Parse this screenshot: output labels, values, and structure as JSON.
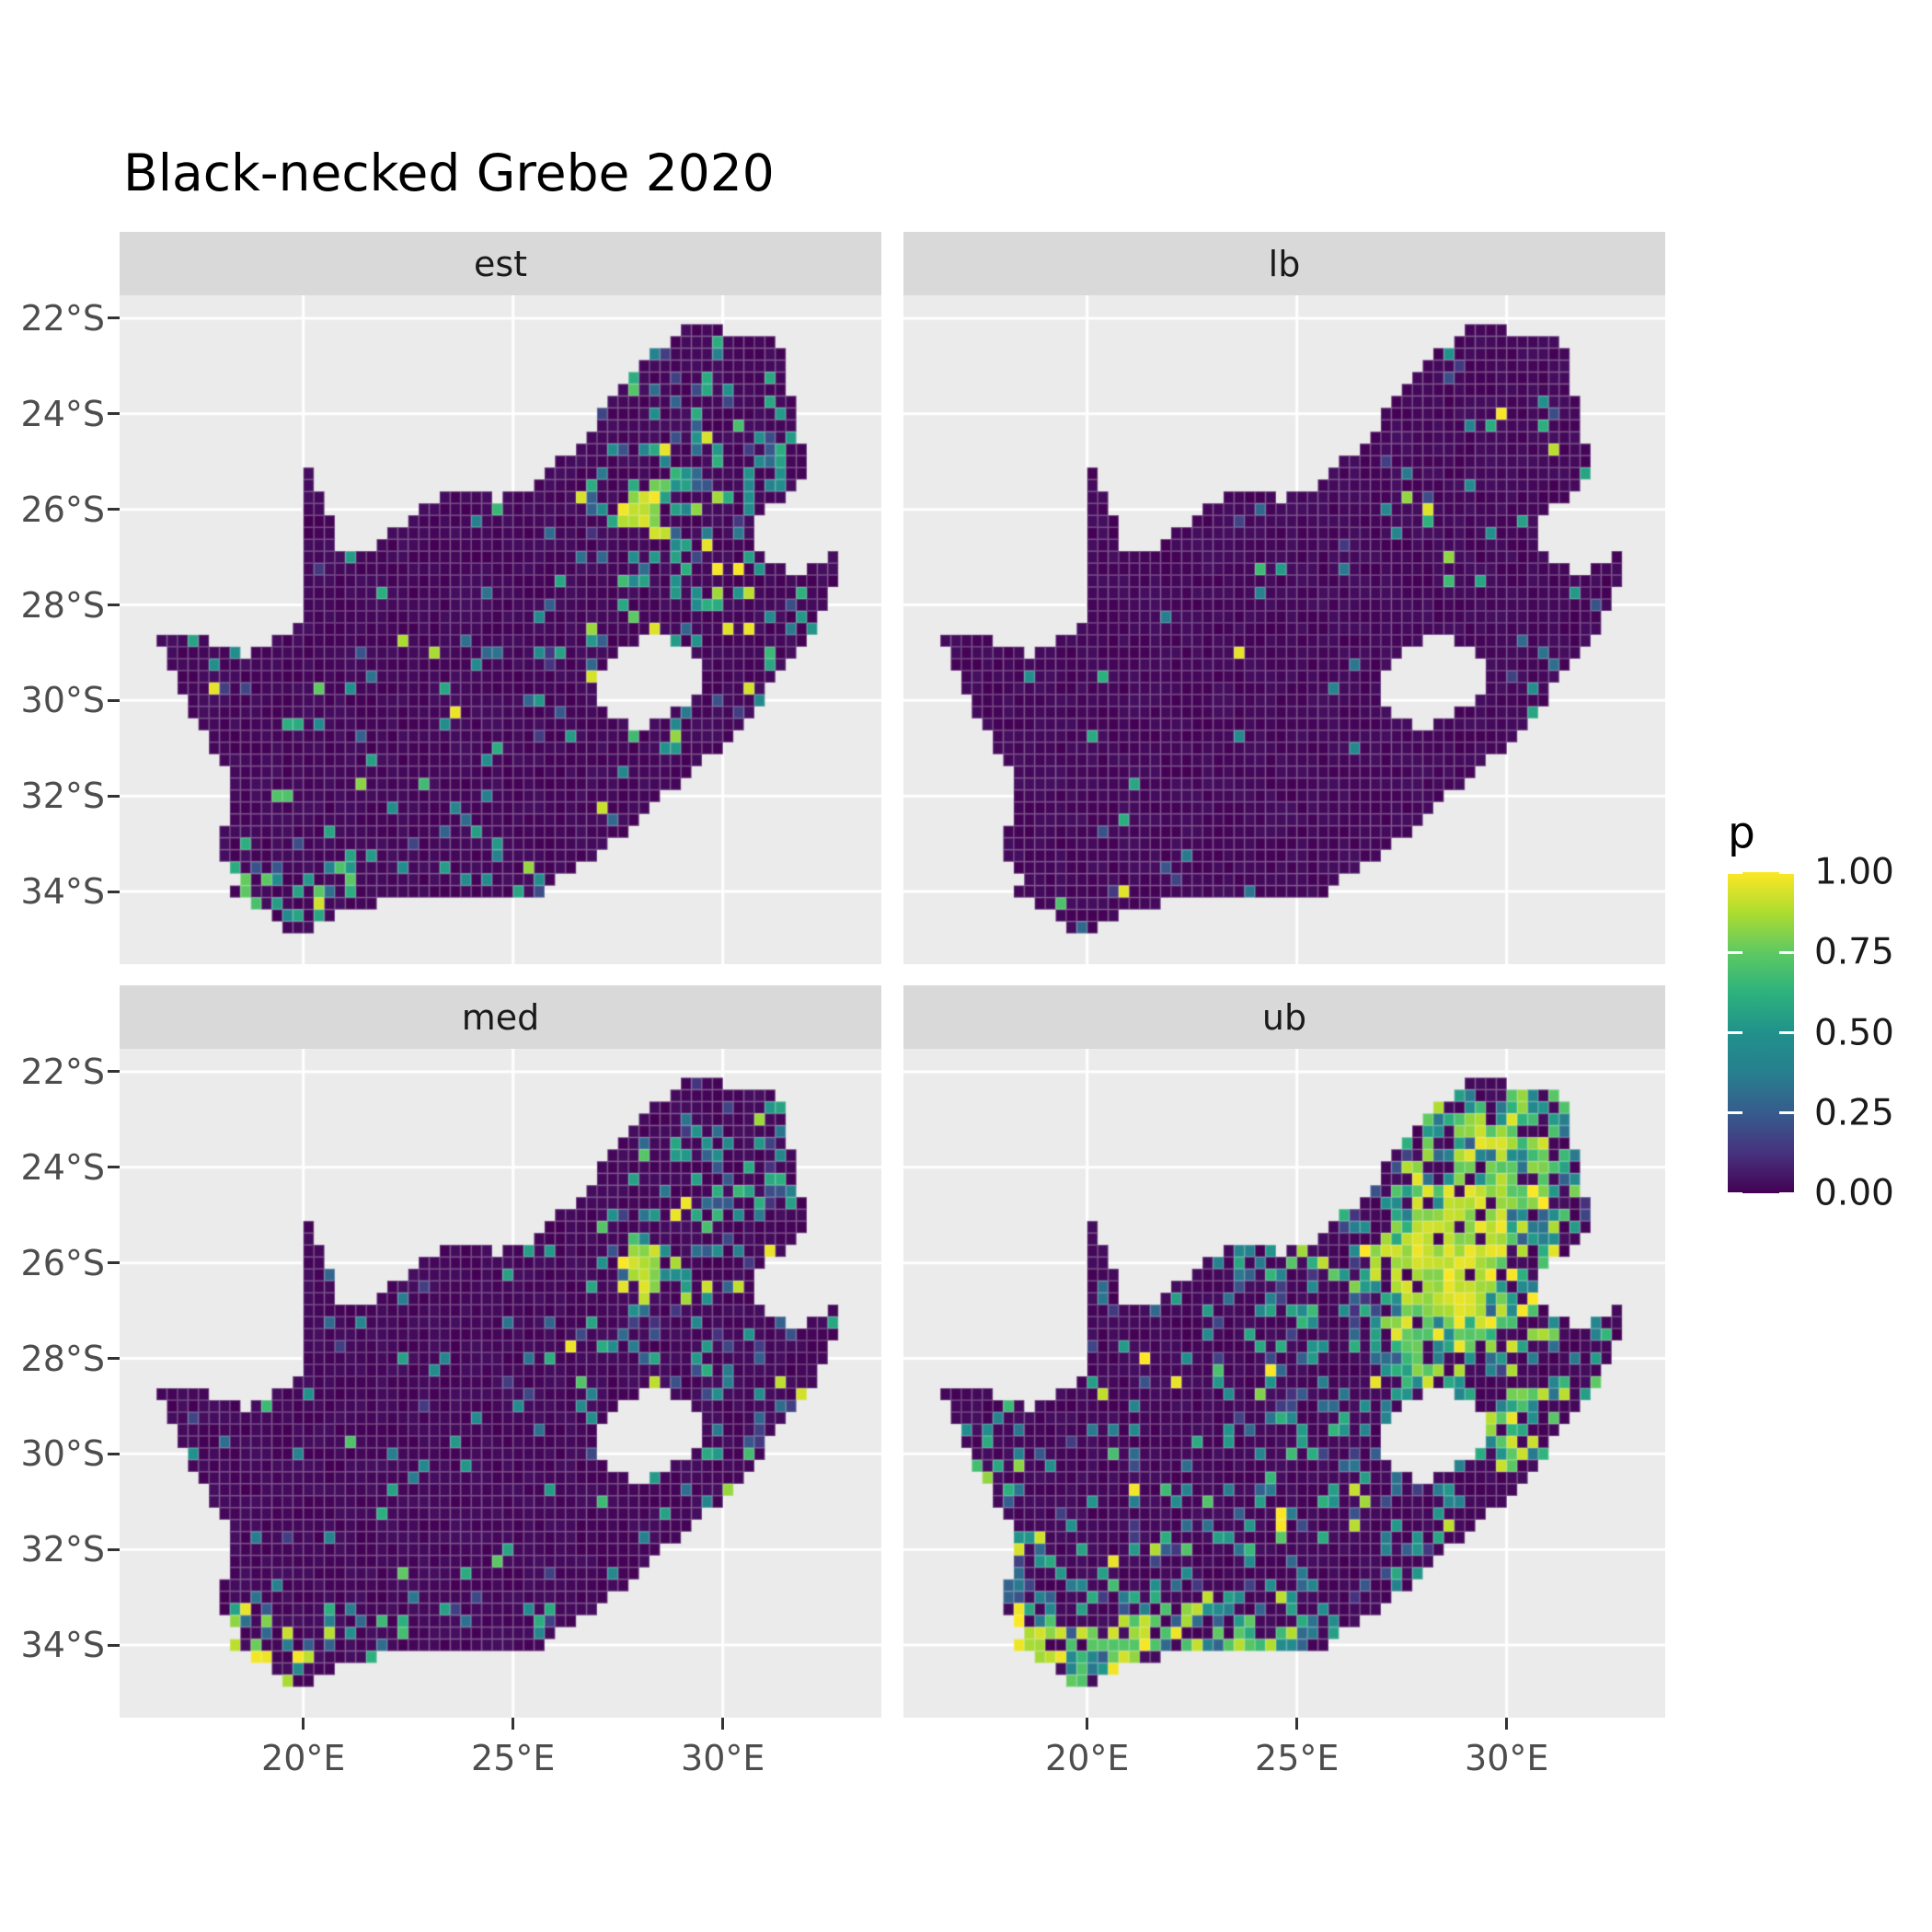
{
  "title": "Black-necked Grebe 2020",
  "facets": [
    {
      "id": "est",
      "label": "est"
    },
    {
      "id": "lb",
      "label": "lb"
    },
    {
      "id": "med",
      "label": "med"
    },
    {
      "id": "ub",
      "label": "ub"
    }
  ],
  "y_axis": {
    "tick_labels": [
      "22°S",
      "24°S",
      "26°S",
      "28°S",
      "30°S",
      "32°S",
      "34°S"
    ],
    "tick_values": [
      22,
      24,
      26,
      28,
      30,
      32,
      34
    ]
  },
  "x_axis": {
    "tick_labels": [
      "20°E",
      "25°E",
      "30°E"
    ],
    "tick_values": [
      20,
      25,
      30
    ]
  },
  "legend": {
    "title": "p",
    "labels": [
      "1.00",
      "0.75",
      "0.50",
      "0.25",
      "0.00"
    ],
    "values": [
      1.0,
      0.75,
      0.5,
      0.25,
      0.0
    ]
  },
  "colors": {
    "figure_bg": "#FFFFFF",
    "panel_bg": "#EBEBEB",
    "strip_bg": "#D9D9D9",
    "grid": "#FFFFFF",
    "axis_text": "#4D4D4D",
    "tick_mark": "#333333",
    "title_text": "#000000",
    "cell_border": "rgba(255,255,255,0.20)",
    "viridis": [
      "#440154",
      "#46327e",
      "#365c8d",
      "#277f8e",
      "#21918c",
      "#2db27d",
      "#5ec962",
      "#addc30",
      "#fde725"
    ]
  },
  "chart_data": {
    "type": "heatmap",
    "title": "Black-necked Grebe 2020",
    "description": "Faceted quarter-degree raster maps of South Africa showing reporting probability p (viridis scale 0-1) for estimate (est), lower bound (lb), median (med) and upper bound (ub).",
    "facets": [
      "est",
      "lb",
      "med",
      "ub"
    ],
    "region": "South Africa (Lesotho shown as hole)",
    "cell_size_deg": 0.25,
    "x": {
      "label": "longitude",
      "tick_values": [
        20,
        25,
        30
      ],
      "range_deg_e": [
        15.62,
        33.78
      ]
    },
    "y": {
      "label": "latitude",
      "tick_values": [
        -22,
        -24,
        -26,
        -28,
        -30,
        -32,
        -34
      ],
      "range_deg_s": [
        21.52,
        35.52
      ]
    },
    "legend": {
      "title": "p",
      "range": [
        0,
        1
      ],
      "breaks": [
        0,
        0.25,
        0.5,
        0.75,
        1
      ],
      "palette": "viridis",
      "position": "right"
    },
    "grid": "major white gridlines on gray panels",
    "facet_base_density": {
      "est": 0.035,
      "lb": 0.012,
      "med": 0.03,
      "ub": 0.1
    },
    "hotspot_format": "[lng_e, lat_s, sigma_deg, amp_est, amp_lb, amp_med, amp_ub]",
    "hotspots": [
      [
        28.05,
        26.1,
        0.3,
        3.0,
        0.9,
        3.0,
        5.0
      ],
      [
        28.1,
        25.95,
        1.0,
        0.55,
        0.1,
        0.5,
        1.3
      ],
      [
        29.2,
        25.3,
        1.3,
        0.3,
        0.05,
        0.28,
        0.8
      ],
      [
        30.8,
        24.6,
        1.0,
        0.35,
        0.06,
        0.32,
        0.85
      ],
      [
        31.2,
        23.3,
        0.9,
        0.25,
        0.04,
        0.22,
        0.65
      ],
      [
        29.9,
        22.6,
        0.8,
        0.22,
        0.04,
        0.2,
        0.6
      ],
      [
        28.3,
        22.8,
        0.9,
        0.2,
        0.03,
        0.18,
        0.55
      ],
      [
        29.0,
        23.8,
        0.8,
        0.18,
        0.03,
        0.16,
        0.5
      ],
      [
        31.05,
        29.4,
        0.8,
        0.3,
        0.08,
        0.28,
        0.7
      ],
      [
        30.6,
        30.2,
        0.6,
        0.28,
        0.08,
        0.26,
        0.65
      ],
      [
        29.6,
        30.0,
        0.9,
        0.18,
        0.03,
        0.16,
        0.55
      ],
      [
        28.4,
        28.3,
        0.8,
        0.15,
        0.03,
        0.14,
        0.45
      ],
      [
        31.0,
        27.8,
        0.9,
        0.15,
        0.03,
        0.14,
        0.5
      ],
      [
        30.0,
        26.8,
        1.0,
        0.15,
        0.03,
        0.14,
        0.45
      ],
      [
        28.9,
        27.0,
        0.9,
        0.12,
        0.02,
        0.11,
        0.35
      ],
      [
        26.8,
        28.0,
        1.4,
        0.12,
        0.02,
        0.11,
        0.35
      ],
      [
        24.8,
        28.7,
        0.8,
        0.12,
        0.02,
        0.11,
        0.35
      ],
      [
        25.6,
        25.9,
        0.7,
        0.15,
        0.04,
        0.14,
        0.5
      ],
      [
        24.3,
        26.3,
        0.7,
        0.1,
        0.02,
        0.09,
        0.6
      ],
      [
        27.9,
        30.6,
        0.7,
        0.12,
        0.02,
        0.11,
        0.4
      ],
      [
        26.6,
        29.1,
        0.6,
        0.12,
        0.02,
        0.11,
        0.35
      ],
      [
        18.55,
        33.95,
        0.45,
        0.8,
        0.25,
        0.8,
        1.6
      ],
      [
        19.4,
        34.45,
        0.7,
        0.45,
        0.12,
        0.45,
        1.2
      ],
      [
        20.8,
        34.3,
        0.9,
        0.28,
        0.06,
        0.28,
        0.9
      ],
      [
        22.2,
        34.0,
        0.8,
        0.25,
        0.05,
        0.25,
        0.85
      ],
      [
        23.9,
        33.95,
        0.8,
        0.22,
        0.05,
        0.22,
        0.75
      ],
      [
        25.55,
        33.85,
        0.6,
        0.3,
        0.07,
        0.3,
        0.8
      ],
      [
        27.85,
        32.95,
        0.6,
        0.25,
        0.06,
        0.24,
        0.6
      ],
      [
        31.9,
        28.8,
        0.5,
        0.15,
        0.04,
        0.14,
        0.5
      ],
      [
        18.3,
        32.4,
        0.8,
        0.15,
        0.03,
        0.14,
        0.6
      ],
      [
        17.4,
        30.2,
        0.9,
        0.08,
        0.015,
        0.08,
        0.4
      ],
      [
        21.0,
        26.8,
        0.8,
        0.06,
        0.01,
        0.06,
        0.3
      ],
      [
        22.5,
        32.3,
        1.8,
        0.05,
        0.008,
        0.05,
        0.2
      ],
      [
        24.5,
        30.5,
        1.5,
        0.05,
        0.01,
        0.05,
        0.18
      ]
    ],
    "outline_format": "[lng_e, lat_s]",
    "outline": [
      [
        16.45,
        28.6
      ],
      [
        17.05,
        28.72
      ],
      [
        17.45,
        28.7
      ],
      [
        17.95,
        28.82
      ],
      [
        18.5,
        29.05
      ],
      [
        18.95,
        28.9
      ],
      [
        19.35,
        28.72
      ],
      [
        19.7,
        28.5
      ],
      [
        19.99,
        28.42
      ],
      [
        19.99,
        24.75
      ],
      [
        20.15,
        25.05
      ],
      [
        20.35,
        25.55
      ],
      [
        20.55,
        26.05
      ],
      [
        20.75,
        26.55
      ],
      [
        20.9,
        26.85
      ],
      [
        21.45,
        26.85
      ],
      [
        21.9,
        26.67
      ],
      [
        22.4,
        26.25
      ],
      [
        22.9,
        25.95
      ],
      [
        23.45,
        25.62
      ],
      [
        24.0,
        25.65
      ],
      [
        24.55,
        25.78
      ],
      [
        25.05,
        25.72
      ],
      [
        25.5,
        25.58
      ],
      [
        25.9,
        25.15
      ],
      [
        26.25,
        24.9
      ],
      [
        26.65,
        24.62
      ],
      [
        26.95,
        24.3
      ],
      [
        27.3,
        23.7
      ],
      [
        27.75,
        23.38
      ],
      [
        28.15,
        22.85
      ],
      [
        28.6,
        22.55
      ],
      [
        29.1,
        22.2
      ],
      [
        29.65,
        22.15
      ],
      [
        30.15,
        22.3
      ],
      [
        30.65,
        22.32
      ],
      [
        31.1,
        22.35
      ],
      [
        31.3,
        22.42
      ],
      [
        31.45,
        22.95
      ],
      [
        31.6,
        23.6
      ],
      [
        31.77,
        24.25
      ],
      [
        31.9,
        24.85
      ],
      [
        32.02,
        25.38
      ],
      [
        31.55,
        25.72
      ],
      [
        31.08,
        25.98
      ],
      [
        30.82,
        26.32
      ],
      [
        30.87,
        26.82
      ],
      [
        31.08,
        27.12
      ],
      [
        31.5,
        27.3
      ],
      [
        31.97,
        27.3
      ],
      [
        32.35,
        27.12
      ],
      [
        32.87,
        26.86
      ],
      [
        32.62,
        27.62
      ],
      [
        32.42,
        28.15
      ],
      [
        32.12,
        28.68
      ],
      [
        31.72,
        29.08
      ],
      [
        31.32,
        29.48
      ],
      [
        30.98,
        29.92
      ],
      [
        30.62,
        30.38
      ],
      [
        30.22,
        30.72
      ],
      [
        29.82,
        31.08
      ],
      [
        29.38,
        31.42
      ],
      [
        28.88,
        31.78
      ],
      [
        28.38,
        32.18
      ],
      [
        27.88,
        32.62
      ],
      [
        27.38,
        32.88
      ],
      [
        26.88,
        33.28
      ],
      [
        26.38,
        33.62
      ],
      [
        25.92,
        33.78
      ],
      [
        25.62,
        34.02
      ],
      [
        25.18,
        34.05
      ],
      [
        24.78,
        34.22
      ],
      [
        24.18,
        34.12
      ],
      [
        23.58,
        34.12
      ],
      [
        22.98,
        34.18
      ],
      [
        22.48,
        34.15
      ],
      [
        22.08,
        34.05
      ],
      [
        21.58,
        34.38
      ],
      [
        20.98,
        34.42
      ],
      [
        20.48,
        34.62
      ],
      [
        19.99,
        34.85
      ],
      [
        19.58,
        34.78
      ],
      [
        19.28,
        34.55
      ],
      [
        18.93,
        34.4
      ],
      [
        18.78,
        34.12
      ],
      [
        18.44,
        34.22
      ],
      [
        18.33,
        34.02
      ],
      [
        18.45,
        33.82
      ],
      [
        18.18,
        33.4
      ],
      [
        18.02,
        33.12
      ],
      [
        17.85,
        32.78
      ],
      [
        18.2,
        32.55
      ],
      [
        18.3,
        32.02
      ],
      [
        18.24,
        31.58
      ],
      [
        17.94,
        31.12
      ],
      [
        17.54,
        30.58
      ],
      [
        17.18,
        30.08
      ],
      [
        16.94,
        29.58
      ],
      [
        16.68,
        29.08
      ],
      [
        16.45,
        28.6
      ]
    ],
    "lesotho_hole": [
      [
        27.05,
        29.6
      ],
      [
        27.35,
        29.08
      ],
      [
        27.78,
        28.85
      ],
      [
        28.22,
        28.62
      ],
      [
        28.68,
        28.75
      ],
      [
        29.12,
        28.95
      ],
      [
        29.42,
        29.3
      ],
      [
        29.45,
        29.68
      ],
      [
        29.12,
        30.02
      ],
      [
        28.68,
        30.38
      ],
      [
        28.18,
        30.55
      ],
      [
        27.68,
        30.5
      ],
      [
        27.28,
        30.24
      ],
      [
        27.02,
        29.95
      ]
    ]
  }
}
